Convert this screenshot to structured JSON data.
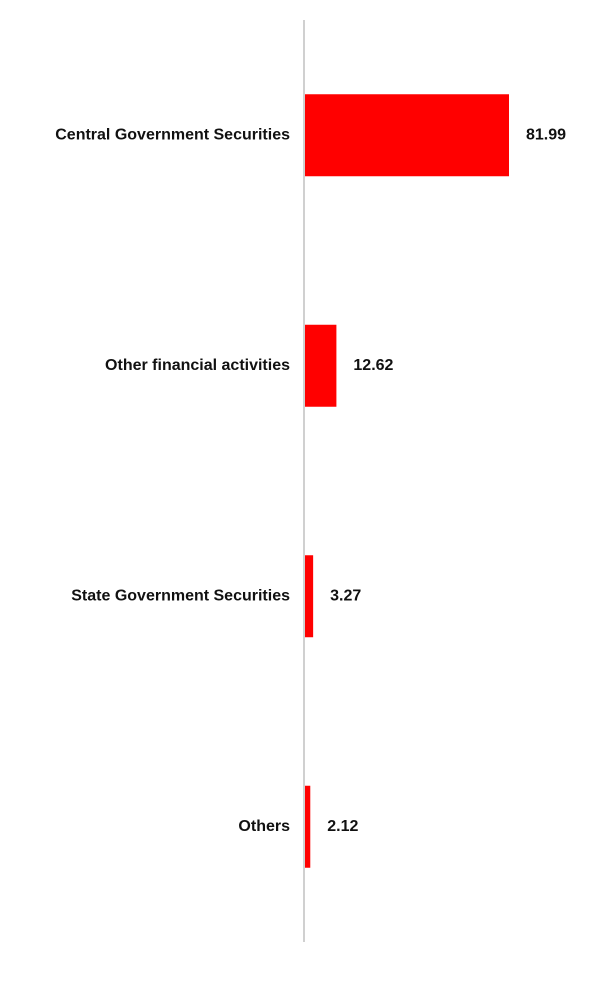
{
  "chart_data": {
    "type": "bar",
    "orientation": "horizontal",
    "categories": [
      "Central Government Securities",
      "Other financial activities",
      "State Government Securities",
      "Others"
    ],
    "values": [
      81.99,
      12.62,
      3.27,
      2.12
    ],
    "value_labels": [
      "81.99",
      "12.62",
      "3.27",
      "2.12"
    ],
    "title": "",
    "xlabel": "",
    "ylabel": "",
    "xlim": [
      0,
      100
    ],
    "grid": false,
    "legend": "none",
    "bar_color": "#ff0000",
    "axis_color": "#d0d0d0"
  }
}
